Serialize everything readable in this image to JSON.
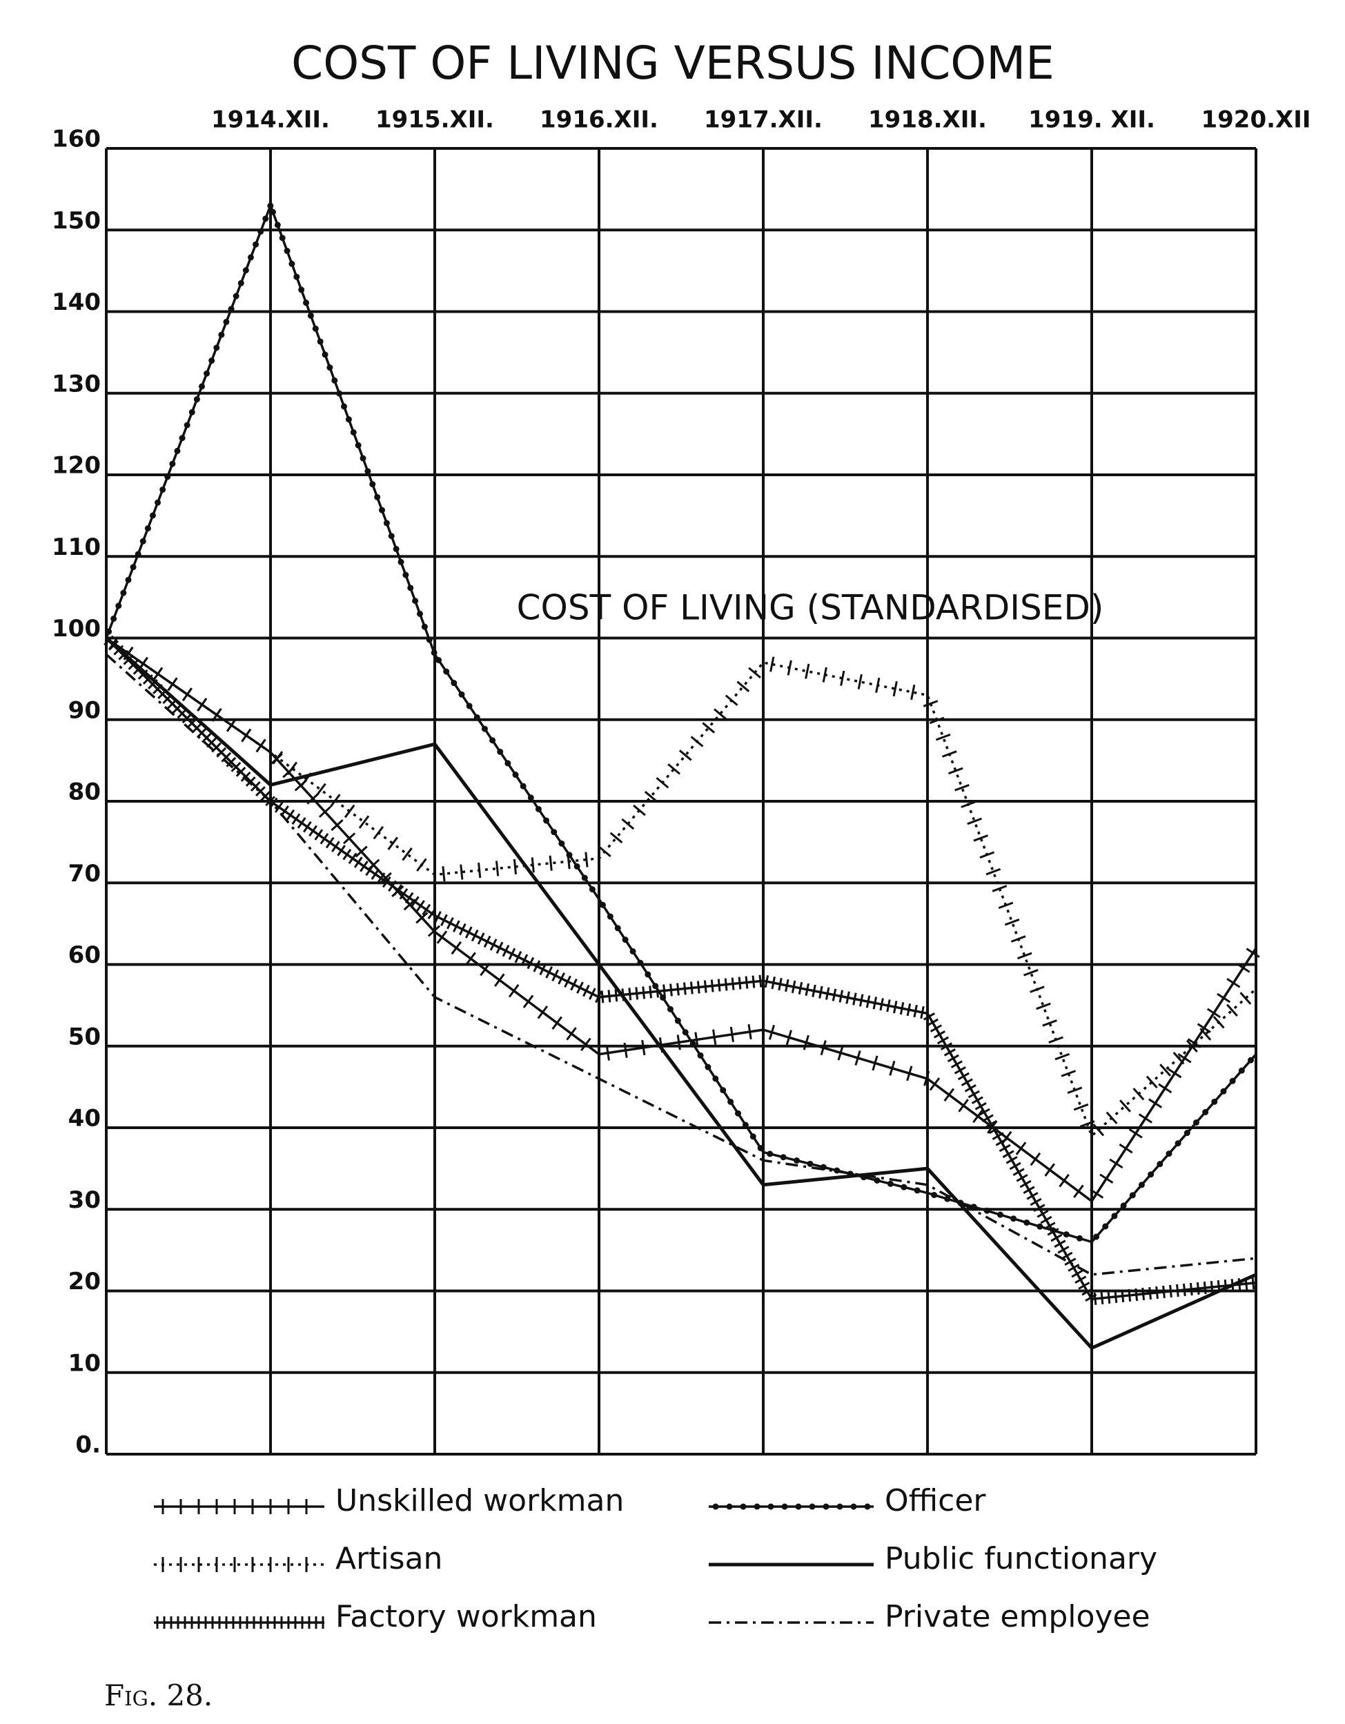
{
  "chart_data": {
    "type": "line",
    "title": "COST OF LIVING VERSUS INCOME",
    "annotation": "COST OF LIVING (STANDARDISED)",
    "caption": "Fig. 28.",
    "categories": [
      null,
      "1914.XII.",
      "1915.XII.",
      "1916.XII.",
      "1917.XII.",
      "1918.XII.",
      "1919. XII.",
      "1920.XII"
    ],
    "ylim": [
      0,
      160
    ],
    "yticks": [
      {
        "value": 0,
        "label": "0."
      },
      10,
      20,
      30,
      40,
      50,
      60,
      70,
      80,
      90,
      100,
      110,
      120,
      130,
      140,
      150,
      160
    ],
    "grid": true,
    "series": [
      {
        "name": "Unskilled workman",
        "color": "#111111",
        "line_style": "solid",
        "marker": "cross",
        "values": [
          100,
          86,
          64,
          49,
          52,
          46,
          31,
          62
        ]
      },
      {
        "name": "Officer",
        "color": "#111111",
        "line_style": "solid",
        "marker": "dot",
        "values": [
          100,
          153,
          98,
          68,
          37,
          32,
          26,
          49
        ]
      },
      {
        "name": "Artisan",
        "color": "#111111",
        "line_style": "dotted",
        "marker": "cross",
        "values": [
          100,
          86,
          71,
          73,
          97,
          93,
          39,
          57
        ]
      },
      {
        "name": "Public functionary",
        "color": "#111111",
        "line_style": "solid",
        "marker": "none",
        "values": [
          100,
          82,
          87,
          60,
          33,
          35,
          13,
          22
        ]
      },
      {
        "name": "Factory workman",
        "color": "#111111",
        "line_style": "solid",
        "marker": "tick",
        "values": [
          100,
          80,
          66,
          56,
          58,
          54,
          19,
          21
        ]
      },
      {
        "name": "Private employee",
        "color": "#111111",
        "line_style": "dashdot",
        "marker": "none",
        "values": [
          98,
          80,
          56,
          46,
          36,
          33,
          22,
          24
        ]
      }
    ]
  }
}
